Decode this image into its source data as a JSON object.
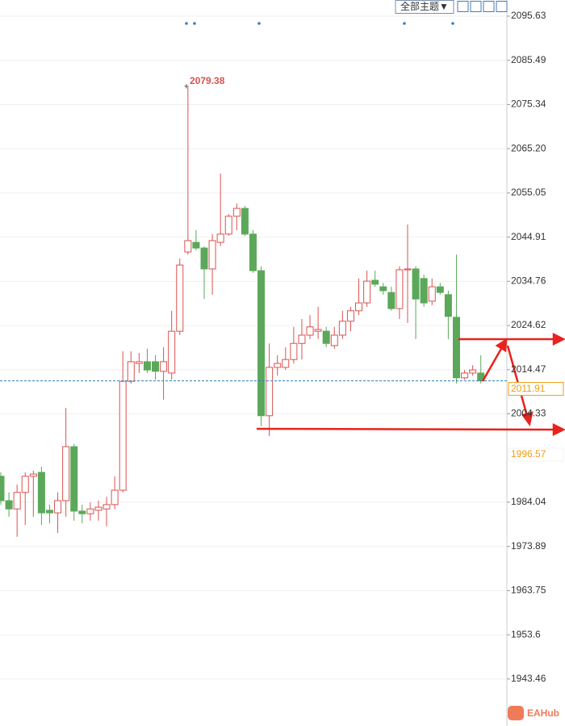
{
  "chart_data": {
    "type": "candlestick",
    "toolbar": "全部主题▼",
    "ylim": [
      1932.67,
      2099.34
    ],
    "yticks": [
      2095.63,
      2085.49,
      2075.34,
      {
        "value": 2065.2,
        "label": "2065.20"
      },
      2055.05,
      2044.91,
      2034.76,
      2024.62,
      2014.47,
      2004.33,
      1984.04,
      1973.89,
      1963.75,
      1953.6,
      1943.46
    ],
    "grid": true,
    "up_color": "#d9534f",
    "down_color": "#5ba85b",
    "open": [
      1990.0,
      1984.4,
      1982.5,
      1986.3,
      1990.0,
      1990.9,
      1982.2,
      1981.6,
      1984.4,
      1996.8,
      1982.0,
      1981.4,
      1982.2,
      1982.5,
      1983.5,
      1986.8,
      2011.8,
      2015.9,
      2016.3,
      2016.3,
      2014.1,
      2013.7,
      2023.3,
      2041.5,
      2043.7,
      2042.4,
      2037.6,
      2043.7,
      2045.6,
      2049.7,
      2051.5,
      2045.6,
      2037.2,
      2003.9,
      2015.0,
      2015.0,
      2016.8,
      2020.5,
      2022.4,
      2023.3,
      2023.3,
      2020.0,
      2022.4,
      2025.6,
      2028.0,
      2029.8,
      2035.0,
      2033.5,
      2032.2,
      2028.5,
      2037.4,
      2037.6,
      2035.4,
      2030.2,
      2033.5,
      2031.7,
      2026.5,
      2012.6,
      2013.7,
      2013.7
    ],
    "high": [
      1990.9,
      1986.3,
      1988.1,
      1990.9,
      1991.3,
      1992.2,
      1983.5,
      1986.3,
      2005.7,
      1997.4,
      1983.5,
      1984.0,
      1984.4,
      1985.3,
      1990.0,
      2018.7,
      2018.7,
      2018.3,
      2019.3,
      2017.8,
      2019.6,
      2028.0,
      2040.0,
      2079.38,
      2046.5,
      2042.8,
      2045.6,
      2059.5,
      2050.2,
      2052.6,
      2052.1,
      2046.5,
      2038.2,
      2020.5,
      2017.8,
      2019.6,
      2024.3,
      2026.1,
      2027.0,
      2028.9,
      2024.3,
      2024.3,
      2028.0,
      2028.9,
      2035.4,
      2037.2,
      2037.2,
      2034.4,
      2033.5,
      2038.2,
      2047.8,
      2038.2,
      2036.3,
      2035.4,
      2034.4,
      2032.6,
      2040.9,
      2014.4,
      2015.5,
      2017.8
    ],
    "low": [
      1983.5,
      1980.7,
      1976.1,
      1978.8,
      1980.7,
      1978.8,
      1979.2,
      1977.0,
      1980.7,
      1979.8,
      1979.2,
      1979.8,
      1979.8,
      1978.5,
      1982.5,
      1986.3,
      2011.3,
      2013.7,
      2013.7,
      2012.2,
      2007.6,
      2012.2,
      2022.4,
      2040.9,
      2041.9,
      2030.7,
      2031.7,
      2042.8,
      2045.2,
      2046.5,
      2045.2,
      2036.7,
      2001.5,
      1999.2,
      2013.1,
      2014.4,
      2015.9,
      2016.8,
      2021.5,
      2021.5,
      2019.6,
      2019.3,
      2021.5,
      2023.3,
      2027.0,
      2028.9,
      2033.5,
      2031.7,
      2028.0,
      2026.1,
      2025.2,
      2021.5,
      2028.9,
      2029.3,
      2031.7,
      2021.5,
      2011.3,
      2012.2,
      2013.1,
      2011.3
    ],
    "close": [
      1984.4,
      1982.5,
      1986.3,
      1990.0,
      1990.5,
      1981.6,
      1981.6,
      1984.4,
      1996.8,
      1982.0,
      1981.4,
      1982.5,
      1982.9,
      1983.5,
      1986.8,
      2011.8,
      2016.3,
      2016.3,
      2014.4,
      2014.1,
      2016.3,
      2023.3,
      2038.5,
      2044.1,
      2042.4,
      2037.6,
      2044.1,
      2045.6,
      2049.7,
      2051.5,
      2045.6,
      2037.2,
      2003.9,
      2015.0,
      2015.9,
      2016.8,
      2020.5,
      2022.4,
      2024.3,
      2023.7,
      2020.5,
      2022.4,
      2025.6,
      2028.0,
      2029.8,
      2034.8,
      2034.1,
      2032.6,
      2028.5,
      2037.4,
      2037.6,
      2030.7,
      2029.8,
      2033.5,
      2032.2,
      2026.7,
      2012.6,
      2013.7,
      2014.4,
      2011.91
    ],
    "high_label": 2079.38,
    "last_price": 2011.91,
    "level_label": 1996.57,
    "logo": "EAHub"
  }
}
